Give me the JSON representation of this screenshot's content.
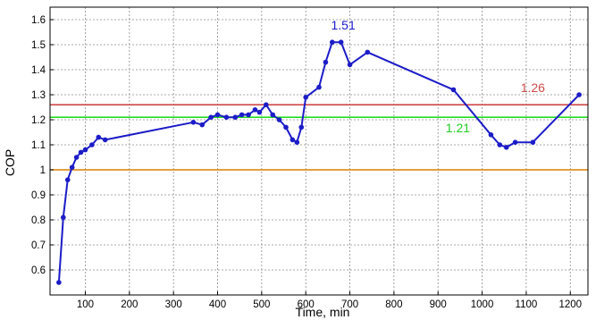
{
  "chart_data": {
    "type": "line",
    "xlabel": "Time, min",
    "ylabel": "COP",
    "xlim": [
      20,
      1240
    ],
    "ylim": [
      0.5,
      1.65
    ],
    "xticks": [
      100,
      200,
      300,
      400,
      500,
      600,
      700,
      800,
      900,
      1000,
      1100,
      1200
    ],
    "yticks": [
      0.6,
      0.7,
      0.8,
      0.9,
      1,
      1.1,
      1.2,
      1.3,
      1.4,
      1.5,
      1.6
    ],
    "xtick_labels": [
      "100",
      "200",
      "300",
      "400",
      "500",
      "600",
      "700",
      "800",
      "900",
      "1000",
      "1100",
      "1200"
    ],
    "ytick_labels": [
      "0.6",
      "0.7",
      "0.8",
      "0.9",
      "1",
      "1.1",
      "1.2",
      "1.3",
      "1.4",
      "1.5",
      "1.6"
    ],
    "grid": true,
    "series": [
      {
        "color": "#1c1cc8",
        "x": [
          40,
          50,
          60,
          70,
          80,
          90,
          100,
          115,
          130,
          145,
          345,
          365,
          385,
          400,
          420,
          440,
          455,
          470,
          485,
          495,
          510,
          525,
          540,
          555,
          570,
          580,
          590,
          600,
          630,
          645,
          660,
          680,
          700,
          740,
          935,
          1020,
          1040,
          1055,
          1075,
          1115,
          1220
        ],
        "y": [
          0.55,
          0.81,
          0.96,
          1.01,
          1.05,
          1.07,
          1.08,
          1.1,
          1.13,
          1.12,
          1.19,
          1.18,
          1.21,
          1.22,
          1.21,
          1.21,
          1.22,
          1.22,
          1.24,
          1.23,
          1.26,
          1.22,
          1.2,
          1.17,
          1.12,
          1.11,
          1.17,
          1.29,
          1.33,
          1.43,
          1.51,
          1.51,
          1.42,
          1.47,
          1.32,
          1.14,
          1.1,
          1.09,
          1.11,
          1.11,
          1.3
        ]
      }
    ],
    "reference_lines": [
      {
        "y": 1.0,
        "color": "#d98100"
      },
      {
        "y": 1.21,
        "color": "#22dd22"
      },
      {
        "y": 1.26,
        "color": "#d04a4a"
      }
    ],
    "annotations": [
      {
        "text": "1.51",
        "x": 685,
        "y": 1.56,
        "color": "#1c1cc8"
      },
      {
        "text": "1.21",
        "x": 945,
        "y": 1.15,
        "color": "#22cc22"
      },
      {
        "text": "1.26",
        "x": 1115,
        "y": 1.31,
        "color": "#d04a4a"
      }
    ]
  }
}
